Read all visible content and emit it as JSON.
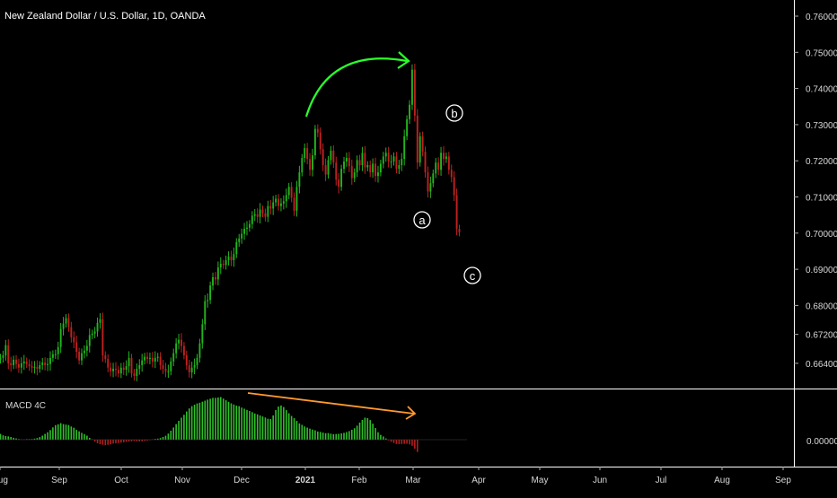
{
  "header": {
    "title": "New Zealand Dollar / U.S. Dollar, 1D, OANDA"
  },
  "macd_panel": {
    "title": "MACD 4C"
  },
  "colors": {
    "bull": "#22b41e",
    "bear": "#c0211f",
    "macd_pos": "#2fbf2a",
    "macd_neg": "#b71c1c",
    "arrow_green": "#2bff2b",
    "arrow_orange": "#ff9a2f",
    "bg": "#000000",
    "grid": "#ffffff"
  },
  "chart_data": {
    "type": "candlestick",
    "title": "New Zealand Dollar / U.S. Dollar, 1D, OANDA",
    "x_ticks": [
      "Aug",
      "Sep",
      "Oct",
      "Nov",
      "Dec",
      "2021",
      "Feb",
      "Mar",
      "Apr",
      "May",
      "Jun",
      "Jul",
      "Aug",
      "Sep"
    ],
    "y_ticks": [
      "0.76000",
      "0.75000",
      "0.74000",
      "0.73000",
      "0.72000",
      "0.71000",
      "0.70000",
      "0.69000",
      "0.68000",
      "0.67200",
      "0.66400"
    ],
    "ylim": [
      0.661,
      0.7625
    ],
    "closes": [
      0.6655,
      0.6662,
      0.669,
      0.664,
      0.6635,
      0.665,
      0.6638,
      0.6628,
      0.664,
      0.6645,
      0.6638,
      0.6632,
      0.6628,
      0.663,
      0.6625,
      0.6635,
      0.6642,
      0.6635,
      0.6638,
      0.6655,
      0.6665,
      0.6665,
      0.6685,
      0.6735,
      0.675,
      0.6765,
      0.674,
      0.6712,
      0.6698,
      0.6672,
      0.6648,
      0.6668,
      0.6675,
      0.6688,
      0.6718,
      0.6722,
      0.6728,
      0.6752,
      0.6762,
      0.6662,
      0.6652,
      0.6628,
      0.6618,
      0.6625,
      0.6622,
      0.6612,
      0.6628,
      0.6622,
      0.6632,
      0.6655,
      0.6612,
      0.6605,
      0.6625,
      0.6635,
      0.6648,
      0.6658,
      0.6652,
      0.6655,
      0.6645,
      0.6655,
      0.6658,
      0.6635,
      0.6625,
      0.6618,
      0.6618,
      0.6645,
      0.6668,
      0.6695,
      0.6705,
      0.6688,
      0.6662,
      0.6635,
      0.6615,
      0.6628,
      0.6635,
      0.6655,
      0.6695,
      0.6748,
      0.6812,
      0.6815,
      0.6855,
      0.6878,
      0.6872,
      0.6905,
      0.6915,
      0.6912,
      0.6925,
      0.6935,
      0.6925,
      0.6942,
      0.6975,
      0.6985,
      0.6998,
      0.7012,
      0.7015,
      0.7025,
      0.7048,
      0.7052,
      0.7045,
      0.7065,
      0.7055,
      0.7045,
      0.7075,
      0.7068,
      0.7085,
      0.7095,
      0.7075,
      0.7082,
      0.7088,
      0.7105,
      0.7128,
      0.7098,
      0.7062,
      0.7128,
      0.7168,
      0.7208,
      0.7235,
      0.7205,
      0.7175,
      0.7215,
      0.7288,
      0.7278,
      0.7232,
      0.7188,
      0.7162,
      0.7202,
      0.7228,
      0.7195,
      0.7148,
      0.7128,
      0.7178,
      0.7198,
      0.7208,
      0.7185,
      0.7152,
      0.7168,
      0.7202,
      0.7188,
      0.7222,
      0.7182,
      0.7188,
      0.7168,
      0.7192,
      0.7158,
      0.7168,
      0.7192,
      0.7212,
      0.7222,
      0.7198,
      0.7198,
      0.7212,
      0.7178,
      0.7188,
      0.7205,
      0.7268,
      0.7315,
      0.7355,
      0.7452,
      0.7325,
      0.7195,
      0.7268,
      0.7225,
      0.7168,
      0.7115,
      0.7138,
      0.7165,
      0.7195,
      0.7175,
      0.7222,
      0.7205,
      0.7212,
      0.7175,
      0.7155,
      0.7105,
      0.7012,
      0.7002
    ],
    "macd_histogram": [
      0.00056,
      0.00042,
      0.00035,
      0.00032,
      0.00026,
      0.00018,
      0.00012,
      6e-05,
      2e-05,
      2e-05,
      5e-05,
      5e-05,
      6e-05,
      0.0001,
      0.00016,
      0.00025,
      0.00039,
      0.00056,
      0.00072,
      0.00093,
      0.00119,
      0.00141,
      0.00149,
      0.0016,
      0.00151,
      0.00146,
      0.00142,
      0.00128,
      0.00116,
      0.00095,
      0.00081,
      0.00066,
      0.00054,
      0.00039,
      0.00018,
      3e-05,
      -0.00019,
      -0.00035,
      -0.00045,
      -0.00049,
      -0.00054,
      -0.0005,
      -0.00045,
      -0.00038,
      -0.00035,
      -0.00032,
      -0.00029,
      -0.00025,
      -0.00021,
      -0.00019,
      -0.00016,
      -0.00013,
      -0.00016,
      -0.00017,
      -0.00016,
      -0.00012,
      -9e-05,
      -4e-05,
      2e-05,
      7e-05,
      0.0001,
      0.00016,
      0.00026,
      0.00038,
      0.00059,
      0.00087,
      0.00118,
      0.00151,
      0.00183,
      0.00213,
      0.00241,
      0.00273,
      0.00303,
      0.00325,
      0.00339,
      0.00351,
      0.00358,
      0.00368,
      0.00378,
      0.00388,
      0.00397,
      0.00405,
      0.00405,
      0.00409,
      0.00413,
      0.00398,
      0.00382,
      0.00367,
      0.00352,
      0.00341,
      0.0033,
      0.00325,
      0.00311,
      0.003,
      0.00289,
      0.00278,
      0.00267,
      0.00254,
      0.00246,
      0.00235,
      0.00225,
      0.00215,
      0.00203,
      0.002,
      0.00235,
      0.00287,
      0.00321,
      0.00331,
      0.00316,
      0.00286,
      0.00256,
      0.0023,
      0.00208,
      0.00182,
      0.00158,
      0.00144,
      0.00128,
      0.00117,
      0.00107,
      0.00098,
      0.00091,
      0.00079,
      0.00075,
      0.00069,
      0.00063,
      0.00064,
      0.00058,
      0.00054,
      0.00055,
      0.00057,
      0.00061,
      0.00066,
      0.00074,
      0.00083,
      0.00096,
      0.00111,
      0.00136,
      0.00166,
      0.00192,
      0.00213,
      0.00209,
      0.0019,
      0.00155,
      0.00113,
      0.00072,
      0.00046,
      0.00031,
      0.00012,
      -7e-05,
      -0.00021,
      -0.00032,
      -0.00042,
      -0.00043,
      -0.00042,
      -0.0004,
      -0.00039,
      -0.00046,
      -0.00059,
      -0.00087,
      -0.00119
    ],
    "macd_ylabel": "0.00000",
    "annotations": [
      "a",
      "b",
      "c"
    ]
  }
}
